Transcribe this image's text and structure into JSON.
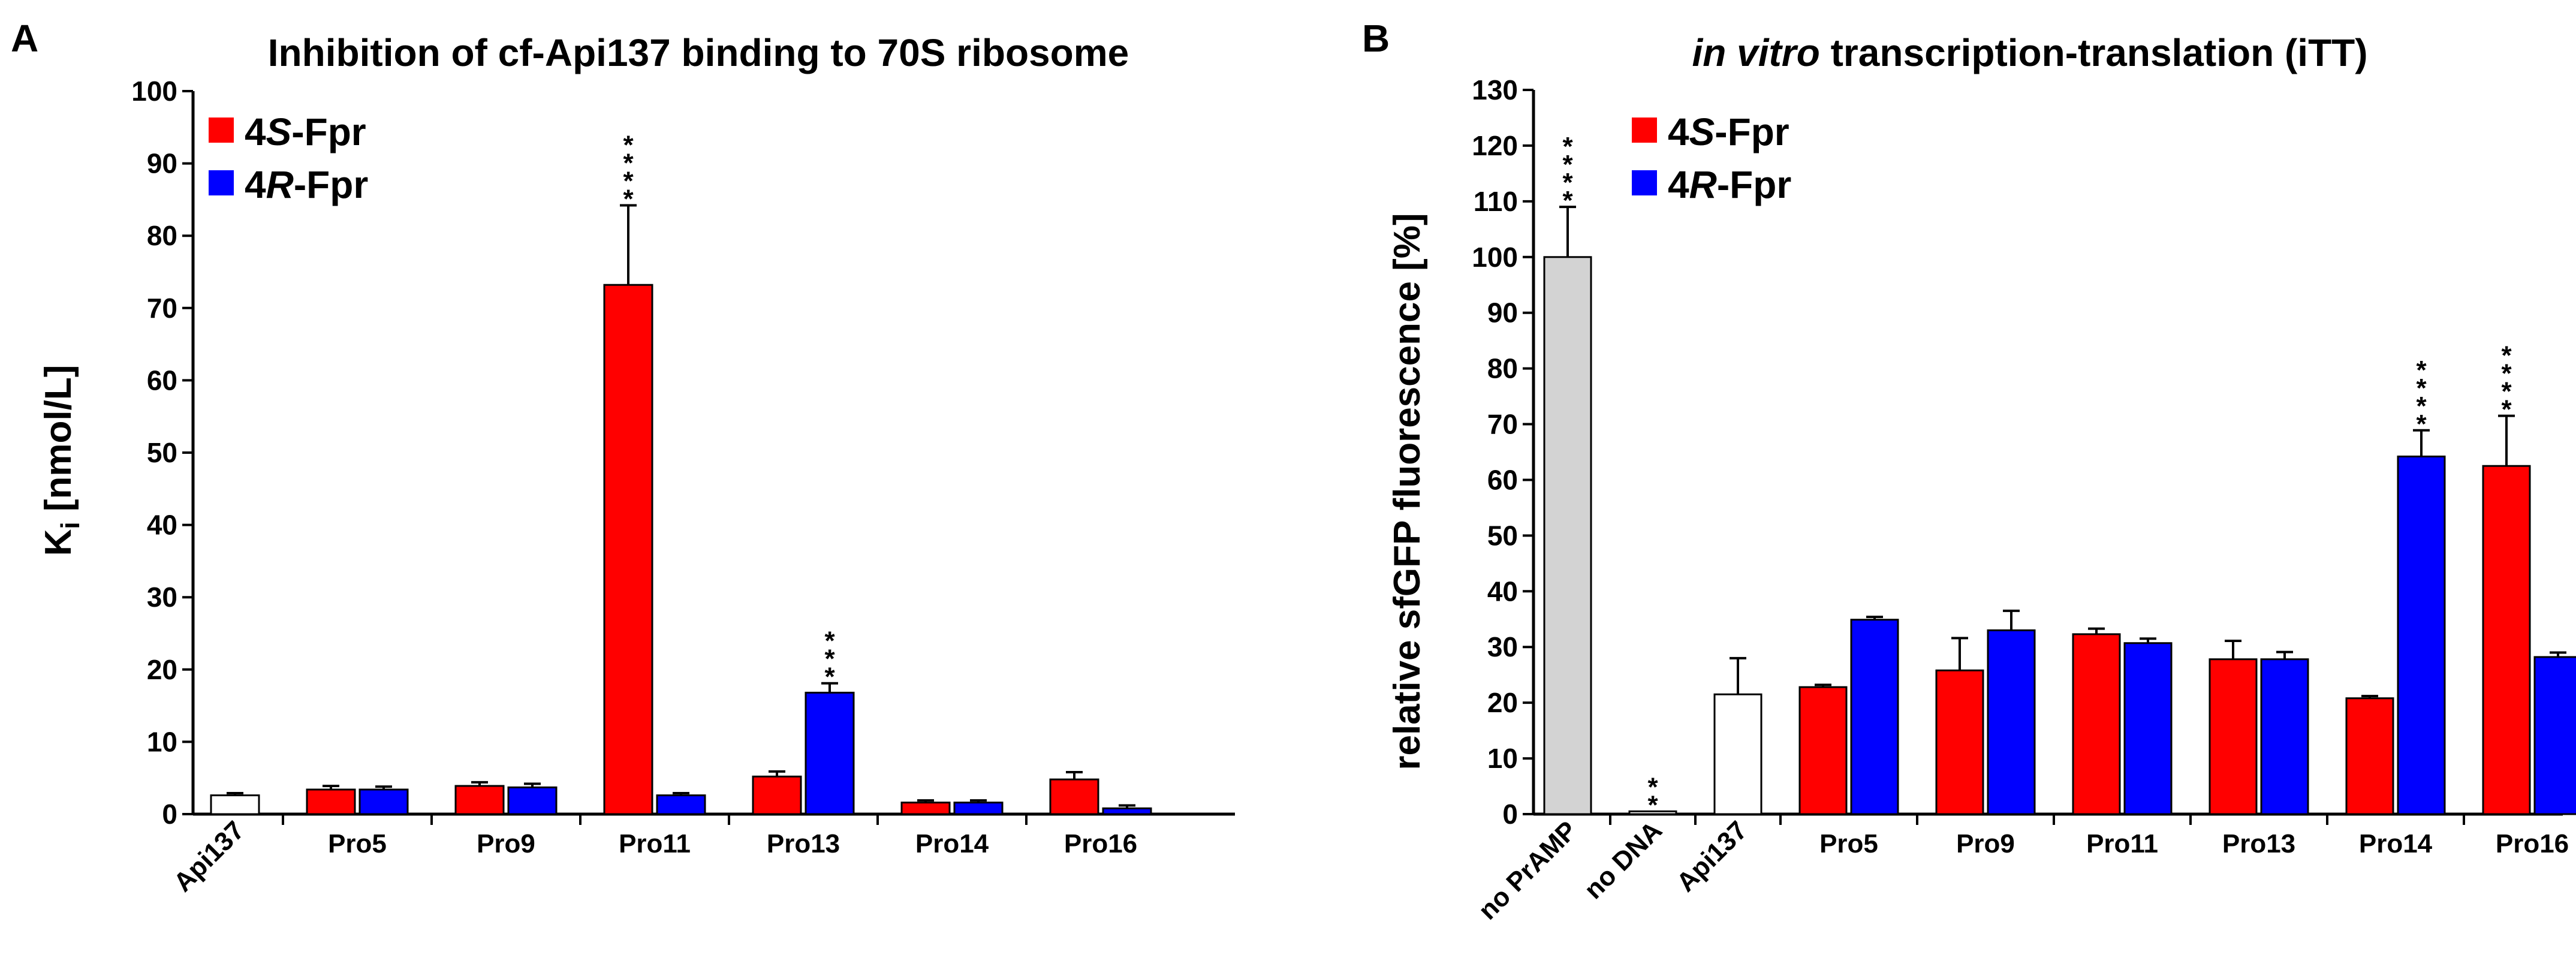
{
  "chart_data": [
    {
      "type": "bar",
      "panel": "A",
      "title": "Inhibition of cf-Api137 binding to 70S ribosome",
      "ylabel": "K",
      "ylabel_sub": "i",
      "ylabel_unit": " [nmol/L]",
      "ylim": [
        0,
        100
      ],
      "yticks": [
        0,
        10,
        20,
        30,
        40,
        50,
        60,
        70,
        80,
        90,
        100
      ],
      "legend": [
        {
          "label_pre": "4",
          "label_it": "S",
          "label_post": "-Fpr",
          "color": "#ff0000"
        },
        {
          "label_pre": "4",
          "label_it": "R",
          "label_post": "-Fpr",
          "color": "#0000ff"
        }
      ],
      "groups": [
        {
          "category": "Api137",
          "rotated": true,
          "bars": [
            {
              "series": "control",
              "value": 2.6,
              "err": 0.3,
              "color": "#ffffff",
              "stars": ""
            }
          ]
        },
        {
          "category": "Pro5",
          "bars": [
            {
              "series": "4S-Fpr",
              "value": 3.4,
              "err": 0.5,
              "color": "#ff0000",
              "stars": ""
            },
            {
              "series": "4R-Fpr",
              "value": 3.4,
              "err": 0.4,
              "color": "#0000ff",
              "stars": ""
            }
          ]
        },
        {
          "category": "Pro9",
          "bars": [
            {
              "series": "4S-Fpr",
              "value": 3.9,
              "err": 0.5,
              "color": "#ff0000",
              "stars": ""
            },
            {
              "series": "4R-Fpr",
              "value": 3.7,
              "err": 0.5,
              "color": "#0000ff",
              "stars": ""
            }
          ]
        },
        {
          "category": "Pro11",
          "bars": [
            {
              "series": "4S-Fpr",
              "value": 73.2,
              "err": 11.0,
              "color": "#ff0000",
              "stars": "****"
            },
            {
              "series": "4R-Fpr",
              "value": 2.6,
              "err": 0.3,
              "color": "#0000ff",
              "stars": ""
            }
          ]
        },
        {
          "category": "Pro13",
          "bars": [
            {
              "series": "4S-Fpr",
              "value": 5.2,
              "err": 0.7,
              "color": "#ff0000",
              "stars": ""
            },
            {
              "series": "4R-Fpr",
              "value": 16.8,
              "err": 1.3,
              "color": "#0000ff",
              "stars": "***"
            }
          ]
        },
        {
          "category": "Pro14",
          "bars": [
            {
              "series": "4S-Fpr",
              "value": 1.6,
              "err": 0.3,
              "color": "#ff0000",
              "stars": ""
            },
            {
              "series": "4R-Fpr",
              "value": 1.6,
              "err": 0.3,
              "color": "#0000ff",
              "stars": ""
            }
          ]
        },
        {
          "category": "Pro16",
          "bars": [
            {
              "series": "4S-Fpr",
              "value": 4.8,
              "err": 1.0,
              "color": "#ff0000",
              "stars": ""
            },
            {
              "series": "4R-Fpr",
              "value": 0.8,
              "err": 0.4,
              "color": "#0000ff",
              "stars": ""
            }
          ]
        }
      ]
    },
    {
      "type": "bar",
      "panel": "B",
      "title_it": "in vitro",
      "title_rest": " transcription-translation (iTT)",
      "ylabel": "relative sfGFP fluorescence [%]",
      "ylim": [
        0,
        130
      ],
      "yticks": [
        0,
        10,
        20,
        30,
        40,
        50,
        60,
        70,
        80,
        90,
        100,
        110,
        120,
        130
      ],
      "legend": [
        {
          "label_pre": "4",
          "label_it": "S",
          "label_post": "-Fpr",
          "color": "#ff0000"
        },
        {
          "label_pre": "4",
          "label_it": "R",
          "label_post": "-Fpr",
          "color": "#0000ff"
        }
      ],
      "groups": [
        {
          "category": "no PrAMP",
          "rotated": true,
          "bars": [
            {
              "series": "control",
              "value": 100,
              "err": 9,
              "color": "#d3d3d3",
              "stars": "****"
            }
          ]
        },
        {
          "category": "no DNA",
          "rotated": true,
          "bars": [
            {
              "series": "control",
              "value": 0.5,
              "err": 0,
              "color": "#ffffff",
              "stars": "**"
            }
          ]
        },
        {
          "category": "Api137",
          "rotated": true,
          "bars": [
            {
              "series": "control",
              "value": 21.5,
              "err": 6.5,
              "color": "#ffffff",
              "stars": ""
            }
          ]
        },
        {
          "category": "Pro5",
          "bars": [
            {
              "series": "4S-Fpr",
              "value": 22.8,
              "err": 0.4,
              "color": "#ff0000",
              "stars": ""
            },
            {
              "series": "4R-Fpr",
              "value": 34.9,
              "err": 0.5,
              "color": "#0000ff",
              "stars": ""
            }
          ]
        },
        {
          "category": "Pro9",
          "bars": [
            {
              "series": "4S-Fpr",
              "value": 25.8,
              "err": 5.8,
              "color": "#ff0000",
              "stars": ""
            },
            {
              "series": "4R-Fpr",
              "value": 33.0,
              "err": 3.5,
              "color": "#0000ff",
              "stars": ""
            }
          ]
        },
        {
          "category": "Pro11",
          "bars": [
            {
              "series": "4S-Fpr",
              "value": 32.3,
              "err": 1.0,
              "color": "#ff0000",
              "stars": ""
            },
            {
              "series": "4R-Fpr",
              "value": 30.7,
              "err": 0.8,
              "color": "#0000ff",
              "stars": ""
            }
          ]
        },
        {
          "category": "Pro13",
          "bars": [
            {
              "series": "4S-Fpr",
              "value": 27.8,
              "err": 3.3,
              "color": "#ff0000",
              "stars": ""
            },
            {
              "series": "4R-Fpr",
              "value": 27.8,
              "err": 1.3,
              "color": "#0000ff",
              "stars": ""
            }
          ]
        },
        {
          "category": "Pro14",
          "bars": [
            {
              "series": "4S-Fpr",
              "value": 20.8,
              "err": 0.4,
              "color": "#ff0000",
              "stars": ""
            },
            {
              "series": "4R-Fpr",
              "value": 64.2,
              "err": 4.7,
              "color": "#0000ff",
              "stars": "****"
            }
          ]
        },
        {
          "category": "Pro16",
          "bars": [
            {
              "series": "4S-Fpr",
              "value": 62.5,
              "err": 9.0,
              "color": "#ff0000",
              "stars": "****"
            },
            {
              "series": "4R-Fpr",
              "value": 28.2,
              "err": 0.8,
              "color": "#0000ff",
              "stars": ""
            }
          ]
        }
      ]
    }
  ]
}
